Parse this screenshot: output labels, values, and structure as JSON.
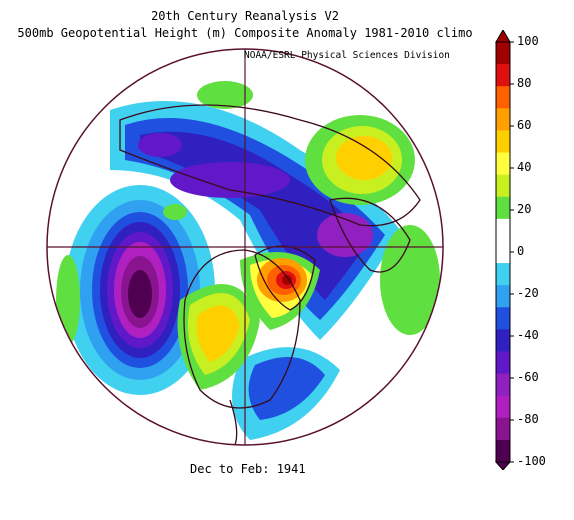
{
  "header": {
    "title_line1": "20th Century Reanalysis V2",
    "title_line2": "500mb Geopotential Height (m) Composite Anomaly 1981-2010 climo",
    "credit": "NOAA/ESRL Physical Sciences Division"
  },
  "footer": {
    "period": "Dec to Feb: 1941"
  },
  "colorbar": {
    "labels": [
      "100",
      "80",
      "60",
      "40",
      "20",
      "0",
      "-20",
      "-40",
      "-60",
      "-80",
      "-100"
    ],
    "colors": [
      "#a00000",
      "#e01010",
      "#ff6000",
      "#ffa000",
      "#ffd000",
      "#ffff40",
      "#c8f020",
      "#60e040",
      "#ffffff",
      "#ffffff",
      "#40d0f0",
      "#30a0f0",
      "#2050e0",
      "#3020c0",
      "#6018c8",
      "#9020c0",
      "#b020c0",
      "#8a1490",
      "#500050"
    ]
  },
  "map": {
    "projection": "north polar stereographic",
    "boundary_color": "#5a1030",
    "land_outline_color": "#3a0a1a"
  }
}
